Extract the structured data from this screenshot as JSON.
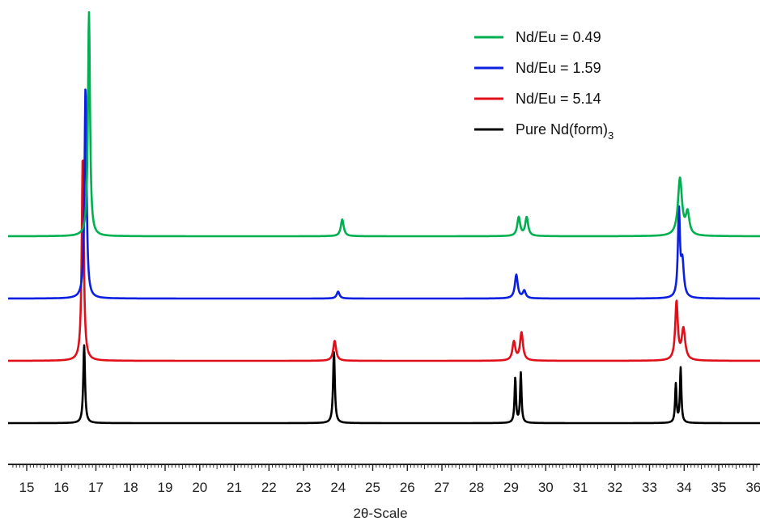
{
  "chart_data": {
    "type": "line",
    "xlabel": "2θ-Scale",
    "ylabel": "",
    "xlim": [
      14.6,
      36.2
    ],
    "tick_labels": [
      "15",
      "16",
      "17",
      "18",
      "19",
      "20",
      "21",
      "22",
      "23",
      "24",
      "25",
      "26",
      "27",
      "28",
      "29",
      "30",
      "31",
      "32",
      "33",
      "34",
      "35",
      "36"
    ],
    "grid": false,
    "legend_position": "top-right",
    "series": [
      {
        "name": "Nd/Eu = 0.49",
        "legend_main": "Nd/Eu = 0.49",
        "color": "#00b050",
        "baseline": 3.0,
        "peaks": [
          {
            "x": 16.8,
            "h": 3.6,
            "w": 0.035
          },
          {
            "x": 24.12,
            "h": 0.27,
            "w": 0.05
          },
          {
            "x": 29.22,
            "h": 0.3,
            "w": 0.05
          },
          {
            "x": 29.45,
            "h": 0.3,
            "w": 0.05
          },
          {
            "x": 33.88,
            "h": 0.92,
            "w": 0.07
          },
          {
            "x": 34.1,
            "h": 0.35,
            "w": 0.06
          }
        ]
      },
      {
        "name": "Nd/Eu = 1.59",
        "legend_main": "Nd/Eu = 1.59",
        "color": "#0a1fe0",
        "baseline": 2.0,
        "peaks": [
          {
            "x": 16.7,
            "h": 3.4,
            "w": 0.035
          },
          {
            "x": 24.0,
            "h": 0.11,
            "w": 0.05
          },
          {
            "x": 29.15,
            "h": 0.38,
            "w": 0.05
          },
          {
            "x": 29.38,
            "h": 0.12,
            "w": 0.05
          },
          {
            "x": 33.85,
            "h": 1.38,
            "w": 0.035
          },
          {
            "x": 33.95,
            "h": 0.55,
            "w": 0.05
          }
        ]
      },
      {
        "name": "Nd/Eu = 5.14",
        "legend_main": "Nd/Eu = 5.14",
        "color": "#e0101a",
        "baseline": 1.0,
        "peaks": [
          {
            "x": 16.62,
            "h": 3.3,
            "w": 0.035
          },
          {
            "x": 23.9,
            "h": 0.32,
            "w": 0.05
          },
          {
            "x": 29.08,
            "h": 0.3,
            "w": 0.05
          },
          {
            "x": 29.3,
            "h": 0.45,
            "w": 0.05
          },
          {
            "x": 33.78,
            "h": 0.93,
            "w": 0.045
          },
          {
            "x": 33.98,
            "h": 0.5,
            "w": 0.06
          }
        ]
      },
      {
        "name": "Pure Nd(form)3",
        "legend_main": "Pure Nd(form)",
        "legend_sub": "3",
        "color": "#000000",
        "baseline": 0.0,
        "peaks": [
          {
            "x": 16.66,
            "h": 1.25,
            "w": 0.03
          },
          {
            "x": 23.88,
            "h": 1.15,
            "w": 0.03
          },
          {
            "x": 29.12,
            "h": 0.72,
            "w": 0.025
          },
          {
            "x": 29.28,
            "h": 0.8,
            "w": 0.025
          },
          {
            "x": 33.76,
            "h": 0.62,
            "w": 0.025
          },
          {
            "x": 33.9,
            "h": 0.88,
            "w": 0.025
          }
        ]
      }
    ]
  }
}
